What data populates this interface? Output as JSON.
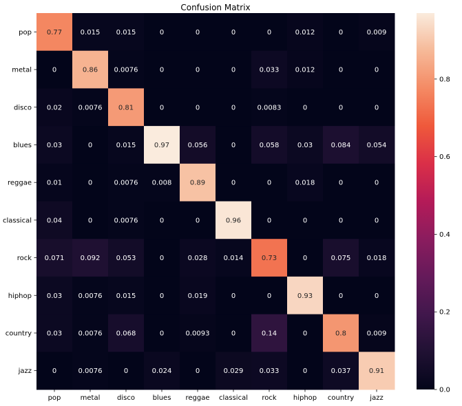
{
  "chart_data": {
    "type": "heatmap",
    "title": "Confusion Matrix",
    "xlabel": "",
    "ylabel": "",
    "rows": [
      "pop",
      "metal",
      "disco",
      "blues",
      "reggae",
      "classical",
      "rock",
      "hiphop",
      "country",
      "jazz"
    ],
    "columns": [
      "pop",
      "metal",
      "disco",
      "blues",
      "reggae",
      "classical",
      "rock",
      "hiphop",
      "country",
      "jazz"
    ],
    "values": [
      [
        0.77,
        0.015,
        0.015,
        0,
        0,
        0,
        0,
        0.012,
        0,
        0.009
      ],
      [
        0,
        0.86,
        0.0076,
        0,
        0,
        0,
        0.033,
        0.012,
        0,
        0
      ],
      [
        0.02,
        0.0076,
        0.81,
        0,
        0,
        0,
        0.0083,
        0,
        0,
        0
      ],
      [
        0.03,
        0,
        0.015,
        0.97,
        0.056,
        0,
        0.058,
        0.03,
        0.084,
        0.054
      ],
      [
        0.01,
        0,
        0.0076,
        0.008,
        0.89,
        0,
        0,
        0.018,
        0,
        0
      ],
      [
        0.04,
        0,
        0.0076,
        0,
        0,
        0.96,
        0,
        0,
        0,
        0
      ],
      [
        0.071,
        0.092,
        0.053,
        0,
        0.028,
        0.014,
        0.73,
        0,
        0.075,
        0.018
      ],
      [
        0.03,
        0.0076,
        0.015,
        0,
        0.019,
        0,
        0,
        0.93,
        0,
        0
      ],
      [
        0.03,
        0.0076,
        0.068,
        0,
        0.0093,
        0,
        0.14,
        0,
        0.8,
        0.009
      ],
      [
        0,
        0.0076,
        0,
        0.024,
        0,
        0.029,
        0.033,
        0,
        0.037,
        0.91
      ]
    ],
    "colorbar": {
      "min": 0,
      "max": 0.97,
      "ticks": [
        "0.0",
        "0.2",
        "0.4",
        "0.6",
        "0.8"
      ],
      "tick_values": [
        0,
        0.2,
        0.4,
        0.6,
        0.8
      ],
      "colormap": "rocket"
    },
    "grid": false,
    "legend": "colorbar-right"
  }
}
